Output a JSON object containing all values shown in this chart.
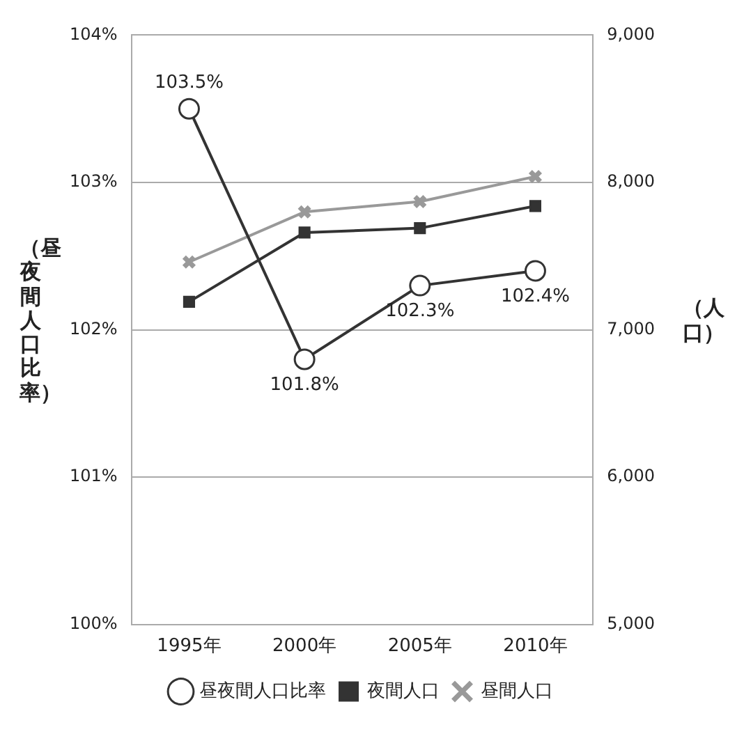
{
  "chart_data": {
    "type": "line",
    "ylabel": "（昼夜間人口比率）",
    "y2label": "（人口）",
    "categories": [
      "1995年",
      "2000年",
      "2005年",
      "2010年"
    ],
    "series": [
      {
        "name": "昼夜間人口比率",
        "color": "#333333",
        "marker": "circle",
        "values": [
          103.5,
          101.8,
          102.3,
          102.4
        ],
        "value_labels": [
          "103.5%",
          "101.8%",
          "102.3%",
          "102.4%"
        ]
      },
      {
        "name": "夜間人口",
        "color": "#333333",
        "marker": "square",
        "axis": "y2",
        "values": [
          7190,
          7660,
          7690,
          7840
        ]
      },
      {
        "name": "昼間人口",
        "color": "#999999",
        "marker": "cross",
        "axis": "y2",
        "values": [
          7460,
          7800,
          7870,
          8040
        ]
      }
    ],
    "ylim": [
      100,
      104
    ],
    "yticks": [
      {
        "value": 100,
        "label": "100%"
      },
      {
        "value": 101,
        "label": "101%"
      },
      {
        "value": 102,
        "label": "102%"
      },
      {
        "value": 103,
        "label": "103%"
      },
      {
        "value": 104,
        "label": "104%"
      }
    ],
    "y2lim": [
      5000,
      9000
    ],
    "y2ticks": [
      {
        "value": 5000,
        "label": "5,000"
      },
      {
        "value": 6000,
        "label": "6,000"
      },
      {
        "value": 7000,
        "label": "7,000"
      },
      {
        "value": 8000,
        "label": "8,000"
      },
      {
        "value": 9000,
        "label": "9,000"
      }
    ],
    "grid": "y",
    "legend": "bottom",
    "line_style": "solid"
  }
}
